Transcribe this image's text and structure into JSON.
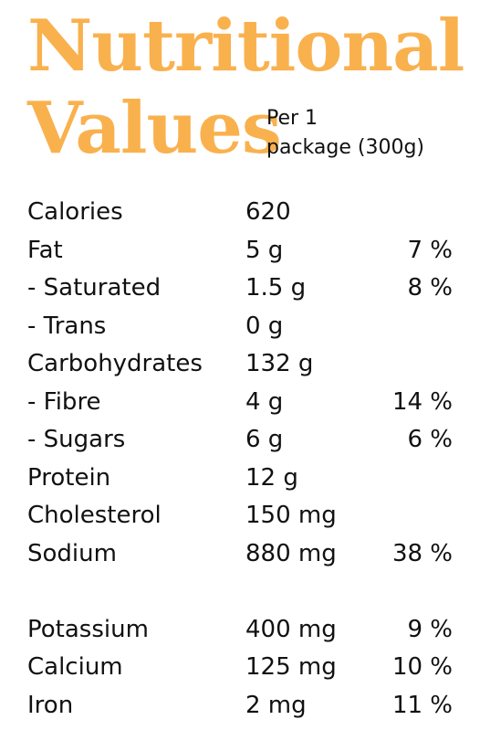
{
  "title": {
    "line1": "Nutritional",
    "line2": "Values",
    "color": "#F9B14E"
  },
  "serving": {
    "line1": "Per 1",
    "line2": "package (300g)"
  },
  "rows": [
    {
      "name": "Calories",
      "amount": "620",
      "percent": ""
    },
    {
      "name": "Fat",
      "amount": "5 g",
      "percent": "7 %"
    },
    {
      "name": " - Saturated",
      "amount": "1.5 g",
      "percent": "8 %"
    },
    {
      "name": " - Trans",
      "amount": "0 g",
      "percent": ""
    },
    {
      "name": "Carbohydrates",
      "amount": "132 g",
      "percent": ""
    },
    {
      "name": " - Fibre",
      "amount": "4 g",
      "percent": "14 %"
    },
    {
      "name": " - Sugars",
      "amount": "6 g",
      "percent": "6 %"
    },
    {
      "name": "Protein",
      "amount": "12 g",
      "percent": ""
    },
    {
      "name": "Cholesterol",
      "amount": "150 mg",
      "percent": ""
    },
    {
      "name": "Sodium",
      "amount": "880 mg",
      "percent": "38 %"
    },
    {
      "name": "Potassium",
      "amount": "400 mg",
      "percent": "9 %"
    },
    {
      "name": "Calcium",
      "amount": "125 mg",
      "percent": "10 %"
    },
    {
      "name": "Iron",
      "amount": "2 mg",
      "percent": "11 %"
    }
  ]
}
